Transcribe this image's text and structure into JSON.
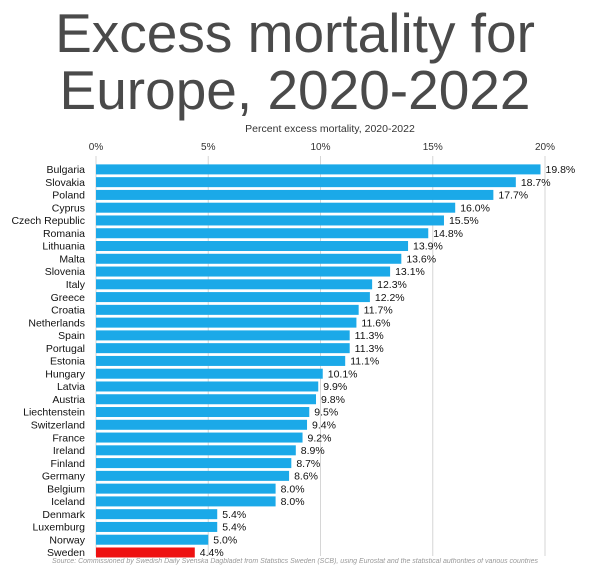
{
  "title_lines": [
    "Excess mortality for",
    "Europe, 2020-2022"
  ],
  "source": "Source: Commissioned by Swedish Daily Svenska Dagbladet from Statistics Sweden (SCB), using Eurostat and the statistical authorities of various countries",
  "colors": {
    "bar": "#1ba9e8",
    "highlight": "#ee1111",
    "grid": "#d6d6d6",
    "title": "#4a4a4a"
  },
  "chart_data": {
    "type": "bar",
    "orientation": "horizontal",
    "title": "Excess mortality for Europe, 2020-2022",
    "xlabel": "Percent excess mortality, 2020-2022",
    "ylabel": "",
    "xlim": [
      0,
      20
    ],
    "ticks": [
      0,
      5,
      10,
      15,
      20
    ],
    "tick_labels": [
      "0%",
      "5%",
      "10%",
      "15%",
      "20%"
    ],
    "axis_position": "top",
    "grid": true,
    "highlight": "Sweden",
    "categories": [
      "Bulgaria",
      "Slovakia",
      "Poland",
      "Cyprus",
      "Czech Republic",
      "Romania",
      "Lithuania",
      "Malta",
      "Slovenia",
      "Italy",
      "Greece",
      "Croatia",
      "Netherlands",
      "Spain",
      "Portugal",
      "Estonia",
      "Hungary",
      "Latvia",
      "Austria",
      "Liechtenstein",
      "Switzerland",
      "France",
      "Ireland",
      "Finland",
      "Germany",
      "Belgium",
      "Iceland",
      "Denmark",
      "Luxemburg",
      "Norway",
      "Sweden"
    ],
    "values": [
      19.8,
      18.7,
      17.7,
      16.0,
      15.5,
      14.8,
      13.9,
      13.6,
      13.1,
      12.3,
      12.2,
      11.7,
      11.6,
      11.3,
      11.3,
      11.1,
      10.1,
      9.9,
      9.8,
      9.5,
      9.4,
      9.2,
      8.9,
      8.7,
      8.6,
      8.0,
      8.0,
      5.4,
      5.4,
      5.0,
      4.4
    ],
    "value_labels": [
      "19.8%",
      "18.7%",
      "17.7%",
      "16.0%",
      "15.5%",
      "14.8%",
      "13.9%",
      "13.6%",
      "13.1%",
      "12.3%",
      "12.2%",
      "11.7%",
      "11.6%",
      "11.3%",
      "11.3%",
      "11.1%",
      "10.1%",
      "9.9%",
      "9.8%",
      "9.5%",
      "9.4%",
      "9.2%",
      "8.9%",
      "8.7%",
      "8.6%",
      "8.0%",
      "8.0%",
      "5.4%",
      "5.4%",
      "5.0%",
      "4.4%"
    ]
  }
}
